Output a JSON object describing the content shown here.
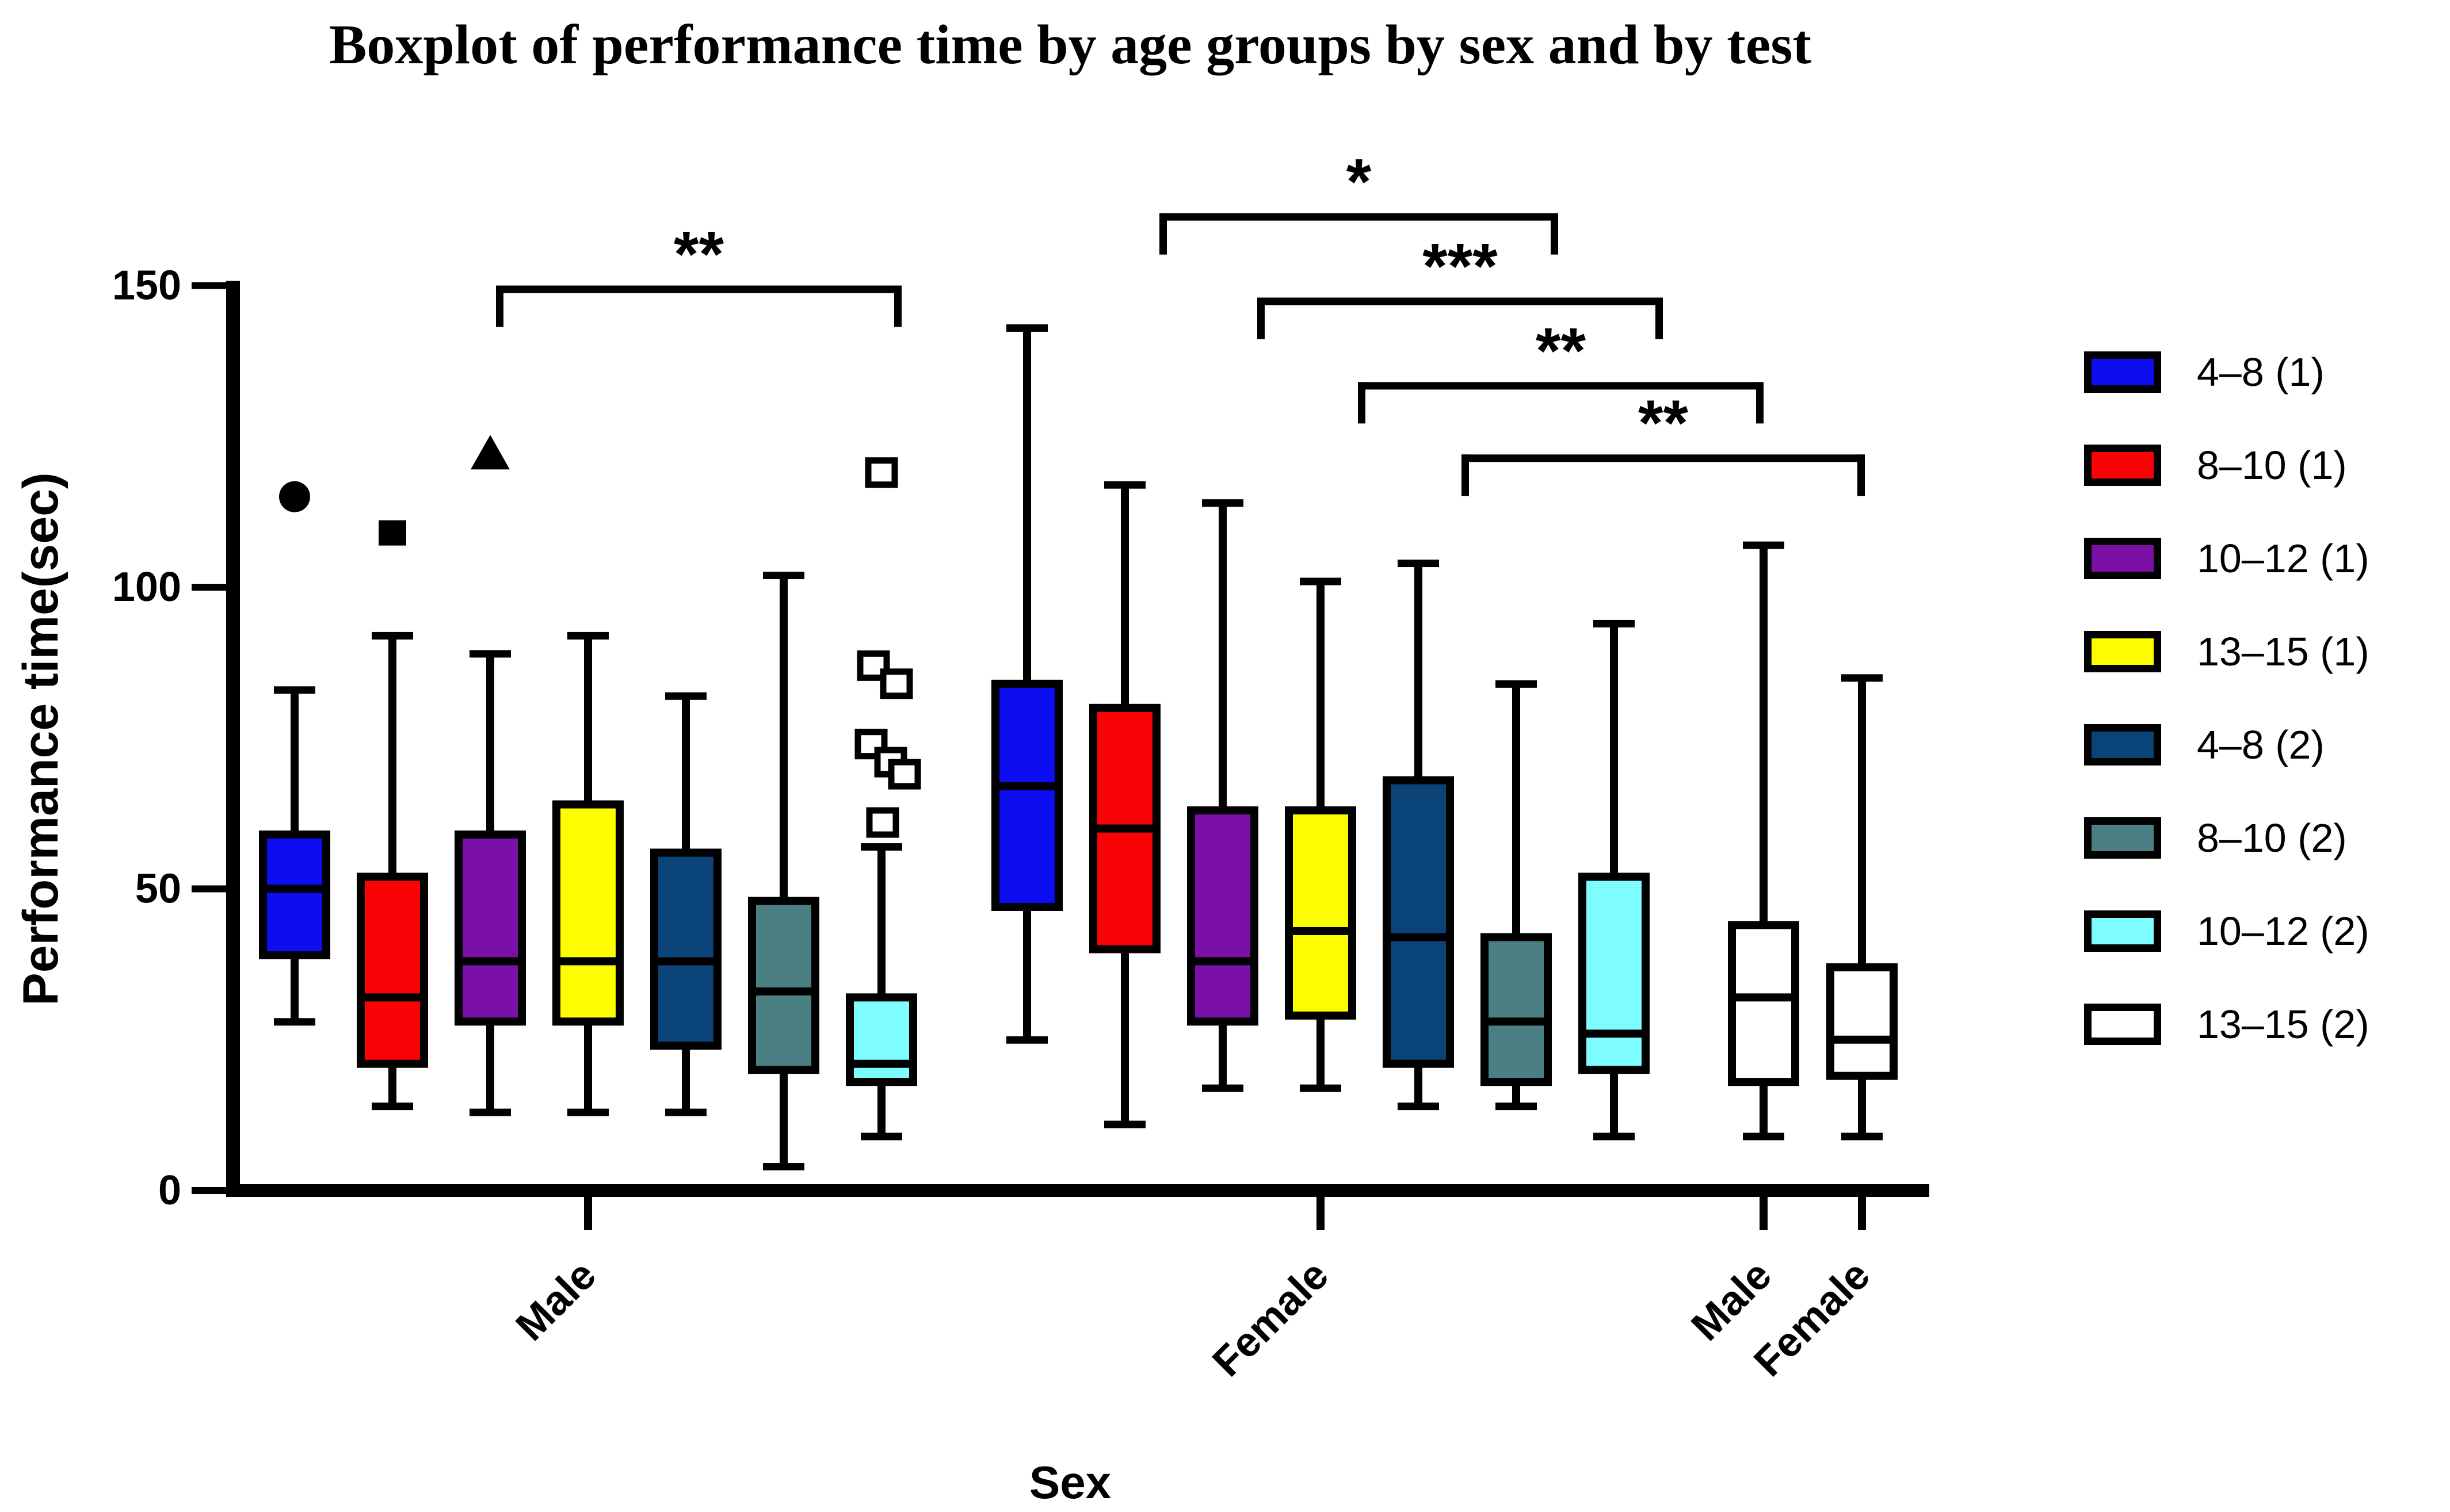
{
  "title": "Boxplot of performance time by age groups by sex and by test",
  "legend": {
    "items": [
      {
        "label": "4–8 (1)",
        "color": "#0D0DF2"
      },
      {
        "label": "8–10 (1)",
        "color": "#FB0207"
      },
      {
        "label": "10–12 (1)",
        "color": "#7A10A5"
      },
      {
        "label": "13–15 (1)",
        "color": "#FDFD00"
      },
      {
        "label": "4–8 (2)",
        "color": "#0A4377"
      },
      {
        "label": "8–10 (2)",
        "color": "#4A8083"
      },
      {
        "label": "10–12 (2)",
        "color": "#7DFDFF"
      },
      {
        "label": "13–15 (2)",
        "color": "#FFFFFF"
      }
    ]
  },
  "chart_data": {
    "type": "boxplot",
    "title": "Boxplot of performance time by age groups by sex and by test",
    "xlabel": "Sex",
    "ylabel": "Performance time(sec)",
    "ylim": [
      0,
      150
    ],
    "yticks": [
      0,
      50,
      100,
      150
    ],
    "grid": false,
    "legend_position": "right",
    "groups": [
      {
        "axis_label": "Male",
        "boxes": [
          {
            "series": "4–8 (1)",
            "color": "#0D0DF2",
            "low": 28,
            "q1": 39,
            "median": 50,
            "q3": 59,
            "high": 83,
            "outliers": [
              {
                "value": 115,
                "marker": "filled-circle",
                "dx": 0
              }
            ]
          },
          {
            "series": "8–10 (1)",
            "color": "#FB0207",
            "low": 14,
            "q1": 21,
            "median": 32,
            "q3": 52,
            "high": 92,
            "outliers": [
              {
                "value": 109,
                "marker": "filled-square",
                "dx": 0
              }
            ]
          },
          {
            "series": "10–12 (1)",
            "color": "#7A10A5",
            "low": 13,
            "q1": 28,
            "median": 38,
            "q3": 59,
            "high": 89,
            "outliers": [
              {
                "value": 122,
                "marker": "filled-triangle",
                "dx": 0
              }
            ]
          },
          {
            "series": "13–15 (1)",
            "color": "#FDFD00",
            "low": 13,
            "q1": 28,
            "median": 38,
            "q3": 64,
            "high": 92,
            "outliers": []
          },
          {
            "series": "4–8 (2)",
            "color": "#0A4377",
            "low": 13,
            "q1": 24,
            "median": 38,
            "q3": 56,
            "high": 82,
            "outliers": []
          },
          {
            "series": "8–10 (2)",
            "color": "#4A8083",
            "low": 4,
            "q1": 20,
            "median": 33,
            "q3": 48,
            "high": 102,
            "outliers": []
          },
          {
            "series": "10–12 (2)",
            "color": "#7DFDFF",
            "low": 9,
            "q1": 18,
            "median": 21,
            "q3": 32,
            "high": 57,
            "outliers": [
              {
                "value": 119,
                "marker": "open-square",
                "dx": 0
              },
              {
                "value": 87,
                "marker": "open-square",
                "dx": -14
              },
              {
                "value": 84,
                "marker": "open-square",
                "dx": 26
              },
              {
                "value": 74,
                "marker": "open-square",
                "dx": -18
              },
              {
                "value": 71,
                "marker": "open-square",
                "dx": 16
              },
              {
                "value": 69,
                "marker": "open-square",
                "dx": 40
              },
              {
                "value": 61,
                "marker": "open-square",
                "dx": 2
              }
            ]
          }
        ]
      },
      {
        "axis_label": "Female",
        "boxes": [
          {
            "series": "4–8 (1)",
            "color": "#0D0DF2",
            "low": 25,
            "q1": 47,
            "median": 67,
            "q3": 84,
            "high": 143,
            "outliers": []
          },
          {
            "series": "8–10 (1)",
            "color": "#FB0207",
            "low": 11,
            "q1": 40,
            "median": 60,
            "q3": 80,
            "high": 117,
            "outliers": []
          },
          {
            "series": "10–12 (1)",
            "color": "#7A10A5",
            "low": 17,
            "q1": 28,
            "median": 38,
            "q3": 63,
            "high": 114,
            "outliers": []
          },
          {
            "series": "13–15 (1)",
            "color": "#FDFD00",
            "low": 17,
            "q1": 29,
            "median": 43,
            "q3": 63,
            "high": 101,
            "outliers": []
          },
          {
            "series": "4–8 (2)",
            "color": "#0A4377",
            "low": 14,
            "q1": 21,
            "median": 42,
            "q3": 68,
            "high": 104,
            "outliers": []
          },
          {
            "series": "8–10 (2)",
            "color": "#4A8083",
            "low": 14,
            "q1": 18,
            "median": 28,
            "q3": 42,
            "high": 84,
            "outliers": []
          },
          {
            "series": "10–12 (2)",
            "color": "#7DFDFF",
            "low": 9,
            "q1": 20,
            "median": 26,
            "q3": 52,
            "high": 94,
            "outliers": []
          }
        ]
      },
      {
        "axis_label": "Male",
        "boxes": [
          {
            "series": "13–15 (2)",
            "color": "#FFFFFF",
            "low": 9,
            "q1": 18,
            "median": 32,
            "q3": 44,
            "high": 107,
            "outliers": []
          }
        ]
      },
      {
        "axis_label": "Female",
        "boxes": [
          {
            "series": "13–15 (2)",
            "color": "#FFFFFF",
            "low": 9,
            "q1": 19,
            "median": 25,
            "q3": 37,
            "high": 85,
            "outliers": []
          }
        ]
      }
    ],
    "significance_brackets": [
      {
        "from": [
          0,
          2
        ],
        "to": [
          0,
          6
        ],
        "label": "**",
        "bar_value": 150
      },
      {
        "from": [
          1,
          1
        ],
        "to": [
          1,
          5
        ],
        "label": "*",
        "bar_value": 162
      },
      {
        "from": [
          1,
          2
        ],
        "to": [
          1,
          6
        ],
        "label": "***",
        "bar_value": 148
      },
      {
        "from": [
          1,
          3
        ],
        "to": [
          2,
          0
        ],
        "label": "**",
        "bar_value": 134
      },
      {
        "from": [
          1,
          4
        ],
        "to": [
          3,
          0
        ],
        "label": "**",
        "bar_value": 122
      }
    ]
  }
}
